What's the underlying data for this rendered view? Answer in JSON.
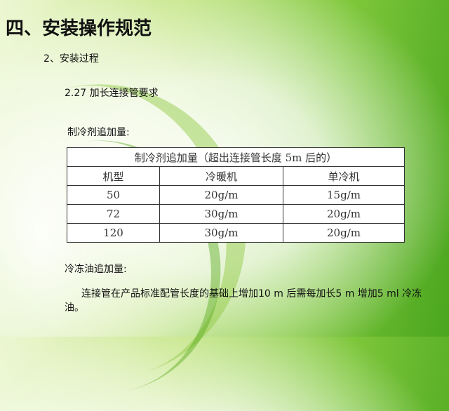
{
  "heading": "四、安装操作规范",
  "section": "2、安装过程",
  "subsection": "2.27 加长连接管要求",
  "refrigerant_label": "制冷剂追加量:",
  "table": {
    "title": "制冷剂追加量（超出连接管长度 5m 后的）",
    "headers": [
      "机型",
      "冷暖机",
      "单冷机"
    ],
    "rows": [
      [
        "50",
        "20g/m",
        "15g/m"
      ],
      [
        "72",
        "30g/m",
        "20g/m"
      ],
      [
        "120",
        "30g/m",
        "20g/m"
      ]
    ]
  },
  "oil_label": "冷冻油追加量:",
  "oil_text": "连接管在产品标准配管长度的基础上增加10 m 后需每加长5 m 增加5 ml 冷冻油。"
}
